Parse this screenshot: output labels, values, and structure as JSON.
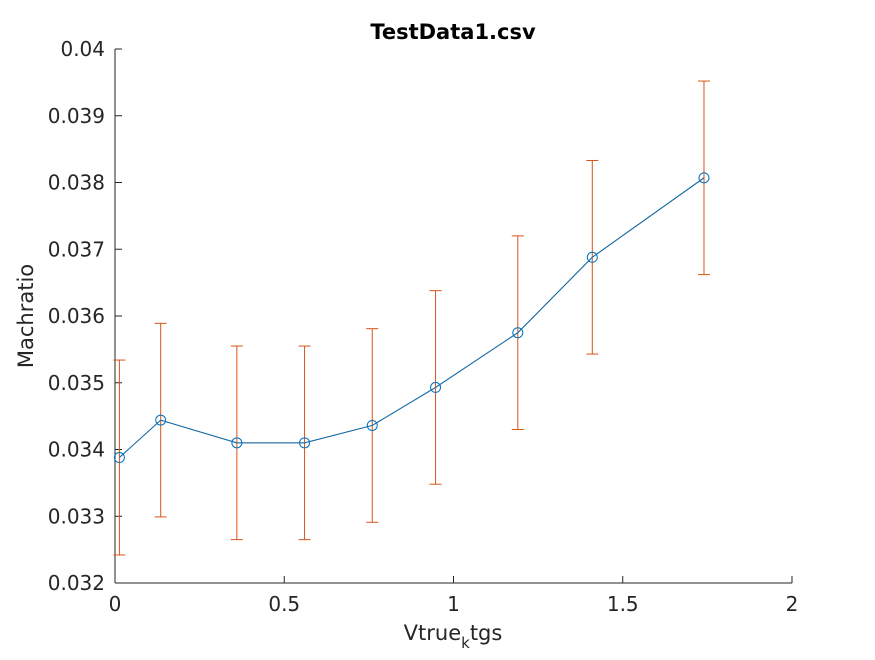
{
  "chart_data": {
    "type": "line",
    "title": "TestData1.csv",
    "xlabel_main": "Vtrue",
    "xlabel_sub": "k",
    "xlabel_tail": "tgs",
    "ylabel": "Machratio",
    "xlim": [
      0,
      2
    ],
    "ylim": [
      0.032,
      0.04
    ],
    "x_ticks": [
      0,
      0.5,
      1,
      1.5,
      2
    ],
    "x_tick_labels": [
      "0",
      "0.5",
      "1",
      "1.5",
      "2"
    ],
    "y_ticks": [
      0.032,
      0.033,
      0.034,
      0.035,
      0.036,
      0.037,
      0.038,
      0.039,
      0.04
    ],
    "y_tick_labels": [
      "0.032",
      "0.033",
      "0.034",
      "0.035",
      "0.036",
      "0.037",
      "0.038",
      "0.039",
      "0.04"
    ],
    "grid": false,
    "series": [
      {
        "color": "#0072BD",
        "marker": "circle",
        "x": [
          0.013,
          0.135,
          0.36,
          0.56,
          0.76,
          0.947,
          1.19,
          1.41,
          1.74
        ],
        "y": [
          0.03388,
          0.03444,
          0.0341,
          0.0341,
          0.03436,
          0.03493,
          0.03575,
          0.03688,
          0.03807
        ],
        "error": [
          0.00146,
          0.00145,
          0.00145,
          0.00145,
          0.00145,
          0.00145,
          0.00145,
          0.00145,
          0.00145
        ]
      }
    ],
    "errorbar_color": "#D95319",
    "line_color": "#0072BD"
  }
}
